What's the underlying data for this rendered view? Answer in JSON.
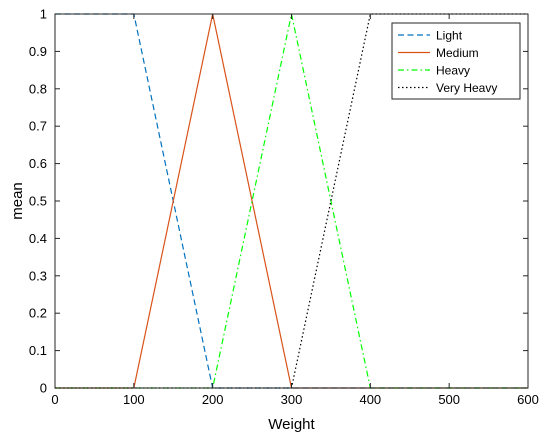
{
  "chart_data": {
    "type": "line",
    "xlabel": "Weight",
    "ylabel": "mean",
    "xlim": [
      0,
      600
    ],
    "ylim": [
      0,
      1
    ],
    "xticks": [
      0,
      100,
      200,
      300,
      400,
      500,
      600
    ],
    "yticks": [
      0,
      0.1,
      0.2,
      0.3,
      0.4,
      0.5,
      0.6,
      0.7,
      0.8,
      0.9,
      1
    ],
    "grid": false,
    "legend_position": "top-right",
    "series": [
      {
        "name": "Light",
        "color": "#0072BD",
        "dash": "dashed",
        "x": [
          0,
          100,
          200,
          600
        ],
        "y": [
          1,
          1,
          0,
          0
        ]
      },
      {
        "name": "Medium",
        "color": "#D95319",
        "dash": "solid",
        "x": [
          0,
          100,
          200,
          300,
          600
        ],
        "y": [
          0,
          0,
          1,
          0,
          0
        ]
      },
      {
        "name": "Heavy",
        "color": "#00FF00",
        "dash": "dashdot",
        "x": [
          0,
          200,
          300,
          400,
          600
        ],
        "y": [
          0,
          0,
          1,
          0,
          0
        ]
      },
      {
        "name": "Very Heavy",
        "color": "#000000",
        "dash": "dotted",
        "x": [
          0,
          300,
          400,
          600
        ],
        "y": [
          0,
          0,
          1,
          1
        ]
      }
    ]
  }
}
